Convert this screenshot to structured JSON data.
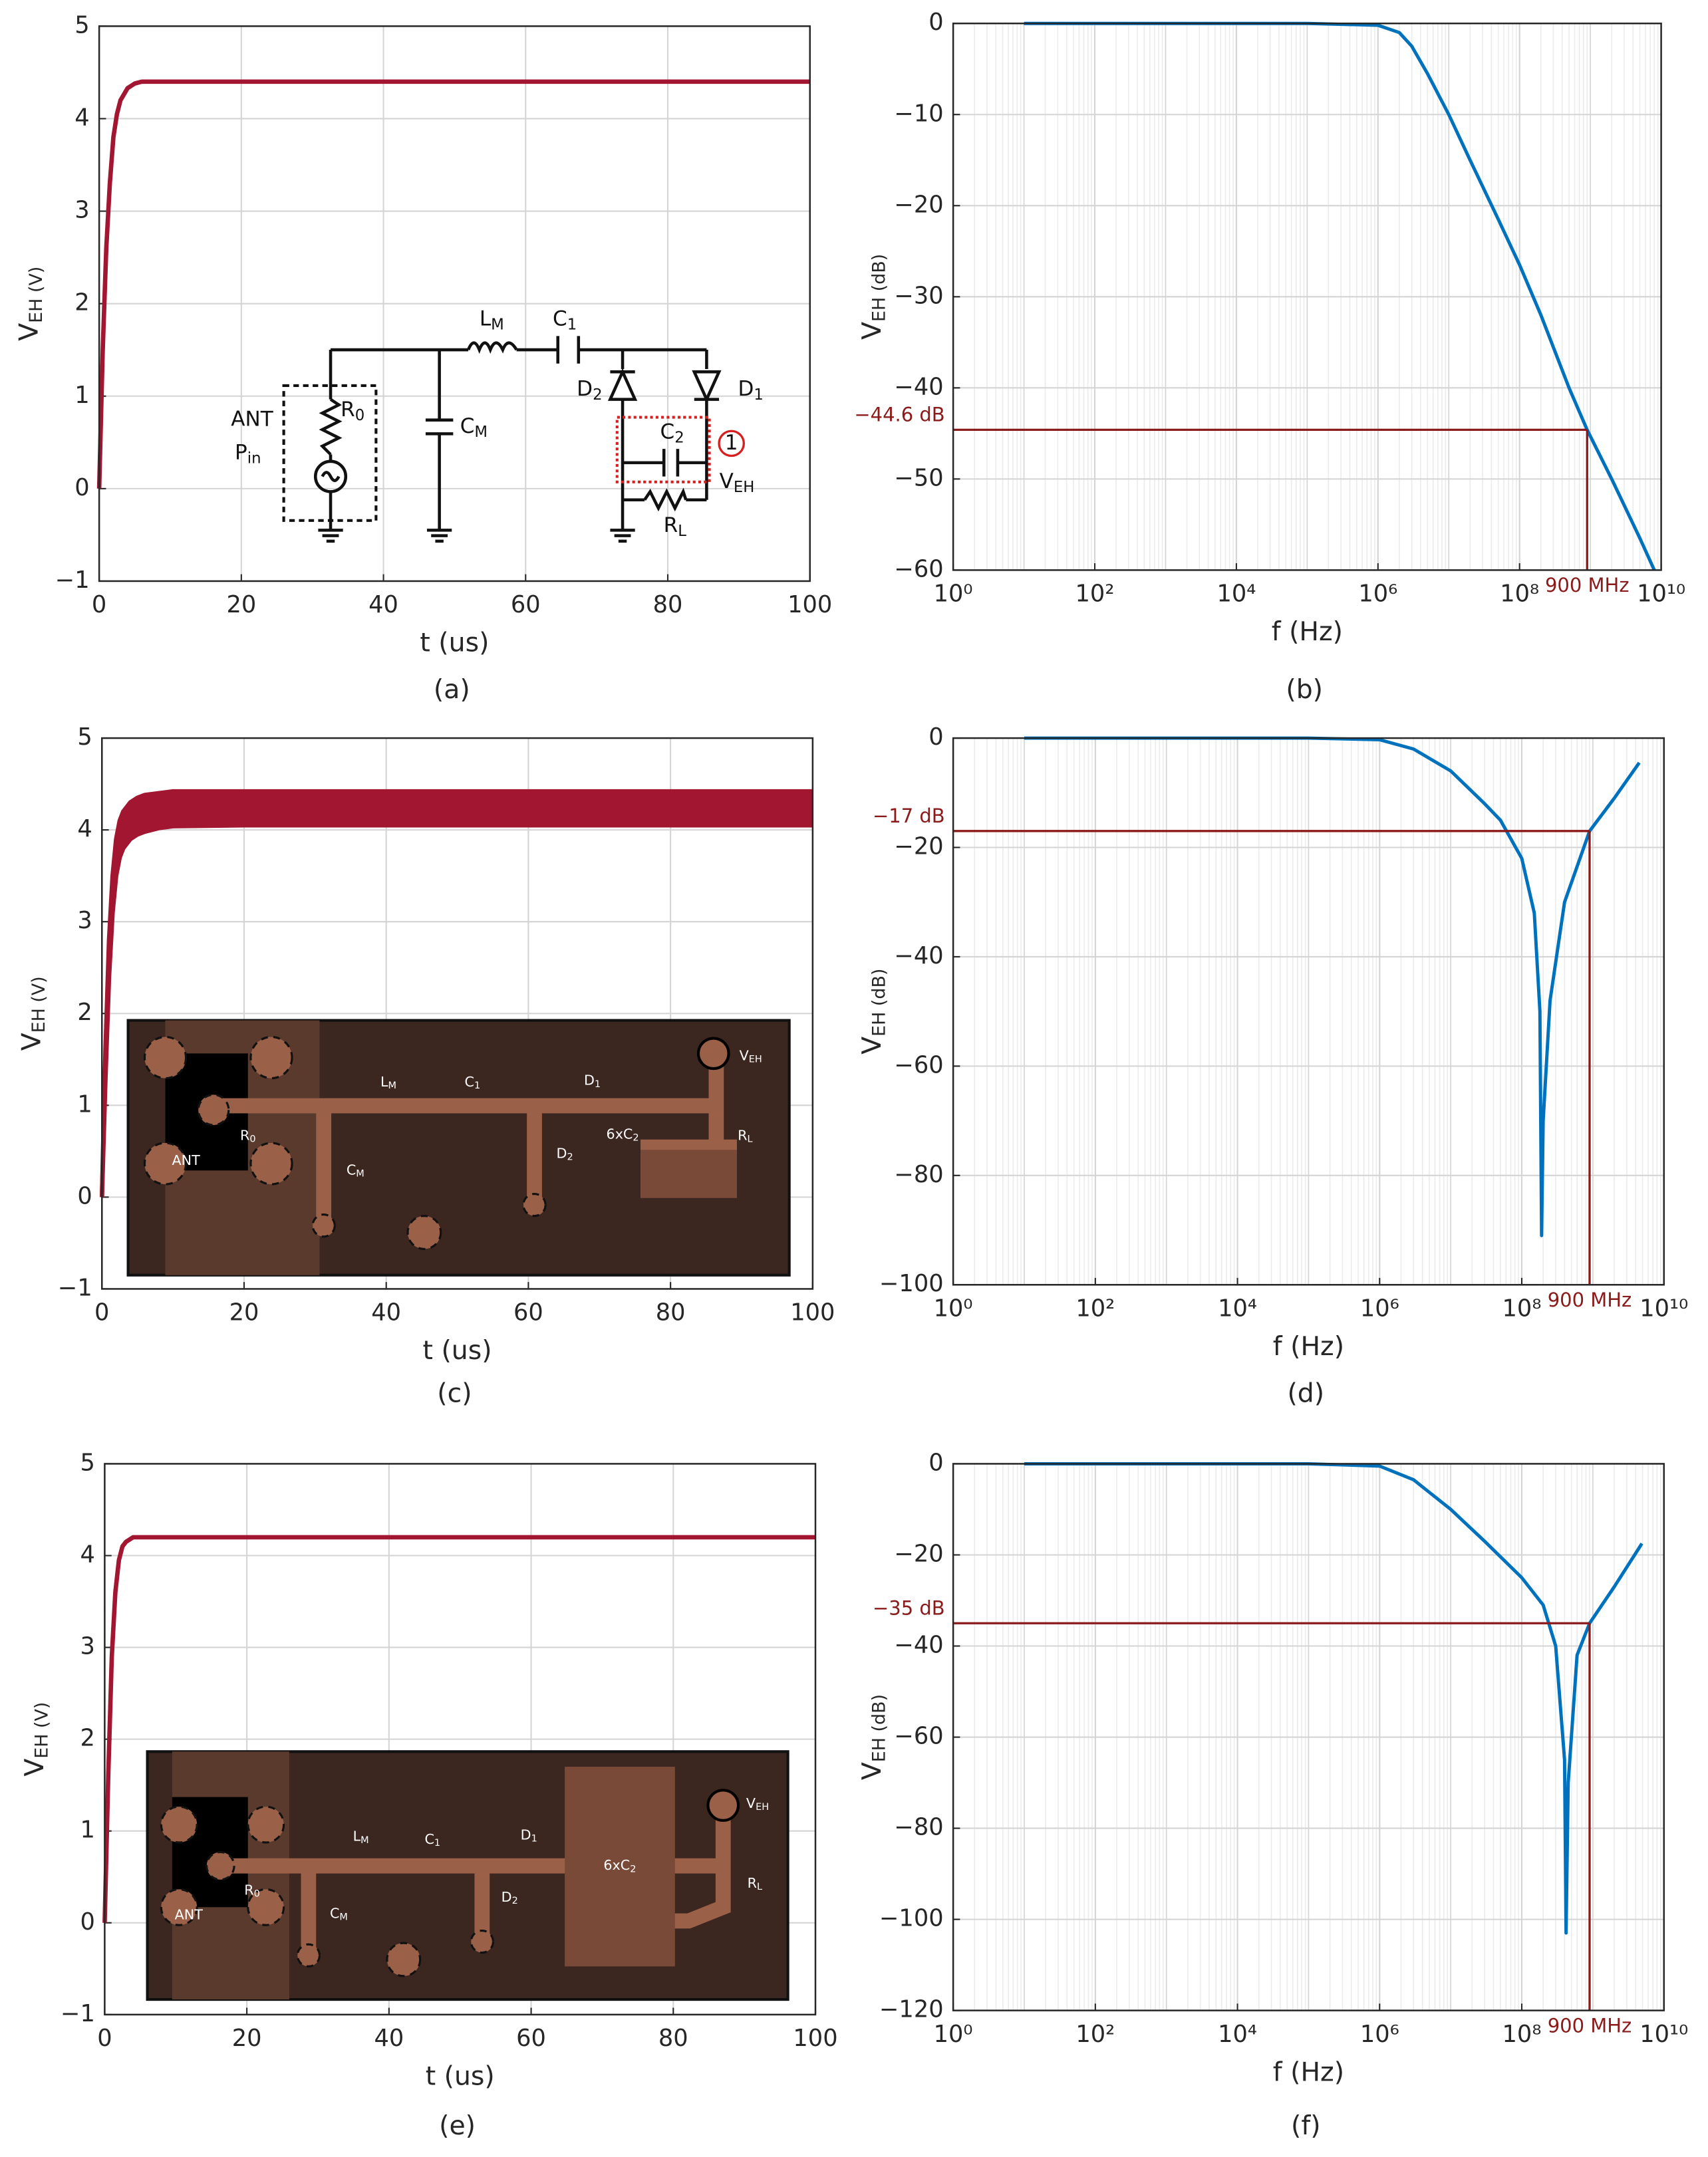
{
  "chart_data": [
    {
      "type": "line",
      "caption": "(a)",
      "xlabel": "t (us)",
      "ylabel": "VEH (V)",
      "x": [
        0,
        0.5,
        1,
        1.5,
        2,
        2.5,
        3,
        4,
        5,
        6,
        8,
        10,
        20,
        40,
        60,
        80,
        100
      ],
      "series": [
        {
          "color": "#a31631",
          "values": [
            0,
            1.5,
            2.6,
            3.3,
            3.8,
            4.05,
            4.2,
            4.33,
            4.38,
            4.4,
            4.4,
            4.4,
            4.4,
            4.4,
            4.4,
            4.4,
            4.4
          ]
        }
      ],
      "xlim": [
        0,
        100
      ],
      "ylim": [
        -1,
        5
      ],
      "xticks": [
        0,
        20,
        40,
        60,
        80,
        100
      ],
      "yticks": [
        {
          "value": -1,
          "label": "−1"
        },
        0,
        1,
        2,
        3,
        4,
        5
      ],
      "grid": true,
      "inset_labels": [
        "LM",
        "C1",
        "D2",
        "D1",
        "C2",
        "ANT",
        "Pin",
        "R0",
        "CM",
        "1",
        "VEH",
        "RL"
      ]
    },
    {
      "type": "line",
      "caption": "(b)",
      "xlabel": "f (Hz)",
      "ylabel": "VEH (dB)",
      "xscale": "log",
      "x": [
        10,
        100000,
        1000000,
        2000000,
        3000000,
        5000000,
        10000000,
        20000000,
        50000000,
        100000000,
        200000000,
        500000000,
        900000000,
        2000000000,
        5000000000,
        8000000000
      ],
      "series": [
        {
          "color": "#0072bd",
          "values": [
            0,
            0,
            -0.2,
            -1,
            -2.5,
            -5.5,
            -10,
            -15,
            -21.5,
            -26.5,
            -32,
            -40,
            -44.6,
            -50,
            -56.5,
            -60
          ]
        }
      ],
      "xlim": [
        1,
        10000000000
      ],
      "ylim": [
        -60,
        0
      ],
      "xticks": [
        {
          "value": 1,
          "label": "10⁰"
        },
        {
          "value": 100,
          "label": "10²"
        },
        {
          "value": 10000,
          "label": "10⁴"
        },
        {
          "value": 1000000,
          "label": "10⁶"
        },
        {
          "value": 100000000,
          "label": "10⁸"
        },
        {
          "value": 10000000000,
          "label": "10¹⁰"
        }
      ],
      "yticks": [
        {
          "value": -60,
          "label": "−60"
        },
        {
          "value": -50,
          "label": "−50"
        },
        {
          "value": -40,
          "label": "−40"
        },
        {
          "value": -30,
          "label": "−30"
        },
        {
          "value": -20,
          "label": "−20"
        },
        {
          "value": -10,
          "label": "−10"
        },
        0
      ],
      "grid": true,
      "annotation_color": "#8b1a1a",
      "annotations": [
        {
          "value": -44.6,
          "label": "−44.6 dB"
        },
        {
          "value": 900000000,
          "label": "900 MHz"
        }
      ]
    },
    {
      "type": "line",
      "caption": "(c)",
      "xlabel": "t (us)",
      "ylabel": "VEH (V)",
      "band": true,
      "x": [
        0,
        0.5,
        1,
        1.5,
        2,
        2.5,
        3,
        4,
        5,
        6,
        8,
        10,
        20,
        40,
        60,
        80,
        100
      ],
      "series": [
        {
          "color": "#a31631",
          "values": [
            0,
            1.6,
            2.8,
            3.5,
            3.9,
            4.1,
            4.2,
            4.3,
            4.35,
            4.38,
            4.4,
            4.42,
            4.42,
            4.42,
            4.42,
            4.42,
            4.42
          ]
        },
        {
          "color": "#a31631",
          "values": [
            0,
            1.3,
            2.4,
            3.1,
            3.5,
            3.7,
            3.8,
            3.9,
            3.95,
            3.98,
            4.02,
            4.04,
            4.05,
            4.05,
            4.05,
            4.05,
            4.05
          ]
        }
      ],
      "xlim": [
        0,
        100
      ],
      "ylim": [
        -1,
        5
      ],
      "xticks": [
        0,
        20,
        40,
        60,
        80,
        100
      ],
      "yticks": [
        {
          "value": -1,
          "label": "−1"
        },
        0,
        1,
        2,
        3,
        4,
        5
      ],
      "grid": true,
      "inset_labels": [
        "LM",
        "C1",
        "D1",
        "VEH",
        "R0",
        "ANT",
        "CM",
        "D2",
        "6xC2",
        "RL"
      ]
    },
    {
      "type": "line",
      "caption": "(d)",
      "xlabel": "f (Hz)",
      "ylabel": "VEH (dB)",
      "xscale": "log",
      "x": [
        10,
        100000,
        1000000,
        3000000,
        10000000,
        30000000,
        50000000,
        100000000,
        150000000,
        180000000,
        190000000,
        200000000,
        250000000,
        400000000,
        900000000,
        2000000000,
        4500000000
      ],
      "series": [
        {
          "color": "#0072bd",
          "values": [
            0,
            0,
            -0.3,
            -2,
            -6,
            -12,
            -15,
            -22,
            -32,
            -50,
            -91,
            -70,
            -48,
            -30,
            -17,
            -11,
            -4.5
          ]
        }
      ],
      "xlim": [
        1,
        10000000000
      ],
      "ylim": [
        -100,
        0
      ],
      "xticks": [
        {
          "value": 1,
          "label": "10⁰"
        },
        {
          "value": 100,
          "label": "10²"
        },
        {
          "value": 10000,
          "label": "10⁴"
        },
        {
          "value": 1000000,
          "label": "10⁶"
        },
        {
          "value": 100000000,
          "label": "10⁸"
        },
        {
          "value": 10000000000,
          "label": "10¹⁰"
        }
      ],
      "yticks": [
        {
          "value": -100,
          "label": "−100"
        },
        {
          "value": -80,
          "label": "−80"
        },
        {
          "value": -60,
          "label": "−60"
        },
        {
          "value": -40,
          "label": "−40"
        },
        {
          "value": -20,
          "label": "−20"
        },
        0
      ],
      "grid": true,
      "annotation_color": "#8b1a1a",
      "annotations": [
        {
          "value": -17,
          "label": "−17 dB"
        },
        {
          "value": 900000000,
          "label": "900 MHz"
        }
      ]
    },
    {
      "type": "line",
      "caption": "(e)",
      "xlabel": "t (us)",
      "ylabel": "VEH (V)",
      "x": [
        0,
        0.5,
        1,
        1.5,
        2,
        2.5,
        3,
        4,
        5,
        6,
        8,
        10,
        20,
        40,
        60,
        80,
        100
      ],
      "series": [
        {
          "color": "#a31631",
          "values": [
            0,
            1.6,
            2.9,
            3.6,
            3.95,
            4.1,
            4.15,
            4.2,
            4.2,
            4.2,
            4.2,
            4.2,
            4.2,
            4.2,
            4.2,
            4.2,
            4.2
          ]
        }
      ],
      "xlim": [
        0,
        100
      ],
      "ylim": [
        -1,
        5
      ],
      "xticks": [
        0,
        20,
        40,
        60,
        80,
        100
      ],
      "yticks": [
        {
          "value": -1,
          "label": "−1"
        },
        0,
        1,
        2,
        3,
        4,
        5
      ],
      "grid": true,
      "inset_labels": [
        "LM",
        "C1",
        "D1",
        "VEH",
        "R0",
        "ANT",
        "CM",
        "D2",
        "6xC2",
        "RL"
      ]
    },
    {
      "type": "line",
      "caption": "(f)",
      "xlabel": "f (Hz)",
      "ylabel": "VEH (dB)",
      "xscale": "log",
      "x": [
        10,
        100000,
        1000000,
        3000000,
        10000000,
        30000000,
        100000000,
        200000000,
        300000000,
        400000000,
        420000000,
        450000000,
        600000000,
        900000000,
        2000000000,
        4900000000
      ],
      "series": [
        {
          "color": "#0072bd",
          "values": [
            0,
            0,
            -0.5,
            -3.5,
            -10,
            -17,
            -25,
            -31,
            -40,
            -65,
            -103,
            -70,
            -42,
            -35,
            -27,
            -17.5
          ]
        }
      ],
      "xlim": [
        1,
        10000000000
      ],
      "ylim": [
        -120,
        0
      ],
      "xticks": [
        {
          "value": 1,
          "label": "10⁰"
        },
        {
          "value": 100,
          "label": "10²"
        },
        {
          "value": 10000,
          "label": "10⁴"
        },
        {
          "value": 1000000,
          "label": "10⁶"
        },
        {
          "value": 100000000,
          "label": "10⁸"
        },
        {
          "value": 10000000000,
          "label": "10¹⁰"
        }
      ],
      "yticks": [
        {
          "value": -120,
          "label": "−120"
        },
        {
          "value": -100,
          "label": "−100"
        },
        {
          "value": -80,
          "label": "−80"
        },
        {
          "value": -60,
          "label": "−60"
        },
        {
          "value": -40,
          "label": "−40"
        },
        {
          "value": -20,
          "label": "−20"
        },
        0
      ],
      "grid": true,
      "annotation_color": "#8b1a1a",
      "annotations": [
        {
          "value": -35,
          "label": "−35 dB"
        },
        {
          "value": 900000000,
          "label": "900 MHz"
        }
      ]
    }
  ]
}
